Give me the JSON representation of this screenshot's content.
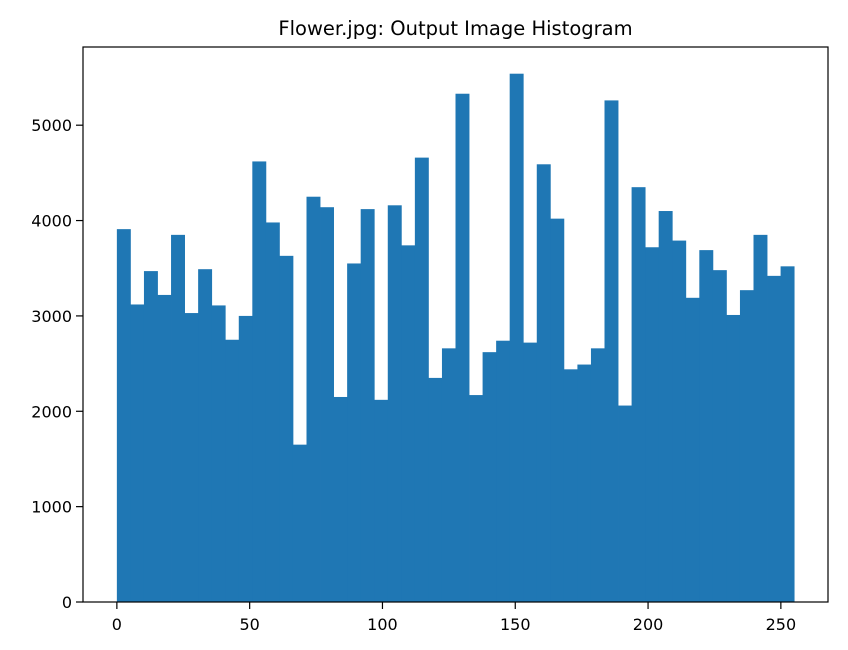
{
  "chart_data": {
    "type": "bar",
    "title": "Flower.jpg: Output Image Histogram",
    "xlabel": "",
    "ylabel": "",
    "xlim": [
      -12.75,
      267.75
    ],
    "ylim": [
      0,
      5820
    ],
    "bin_start": 0,
    "bin_width": 5.1,
    "values": [
      3910,
      3120,
      3470,
      3220,
      3850,
      3030,
      3490,
      3110,
      2750,
      3000,
      4620,
      3980,
      3630,
      1650,
      4250,
      4140,
      2150,
      3550,
      4120,
      2120,
      4160,
      3740,
      4660,
      2350,
      2660,
      5330,
      2170,
      2620,
      2740,
      5540,
      2720,
      4590,
      4020,
      2440,
      2490,
      2660,
      5260,
      2060,
      4350,
      3720,
      4100,
      3790,
      3190,
      3690,
      3480,
      3010,
      3270,
      3850,
      3420,
      3520
    ],
    "x_ticks": [
      0,
      50,
      100,
      150,
      200,
      250
    ],
    "x_tick_labels": [
      "0",
      "50",
      "100",
      "150",
      "200",
      "250"
    ],
    "y_ticks": [
      0,
      1000,
      2000,
      3000,
      4000,
      5000
    ],
    "y_tick_labels": [
      "0",
      "1000",
      "2000",
      "3000",
      "4000",
      "5000"
    ],
    "bar_color": "#1f77b4",
    "grid": false,
    "legend": "none"
  }
}
